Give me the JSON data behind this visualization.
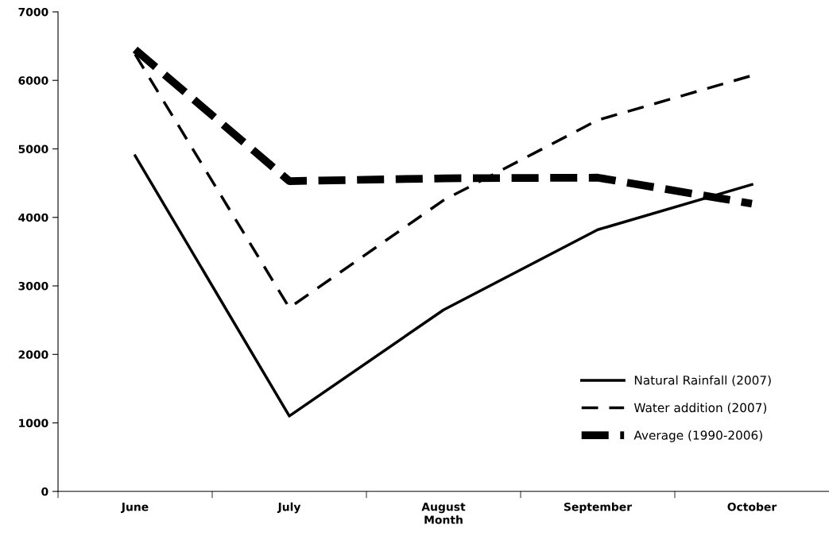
{
  "chart_data": {
    "type": "line",
    "xlabel": "Month",
    "categories": [
      "June",
      "July",
      "August",
      "September",
      "October"
    ],
    "series": [
      {
        "name": "Natural Rainfall (2007)",
        "color": "#000000",
        "line_style": "solid",
        "values": [
          4900,
          1100,
          2650,
          3820,
          4480
        ]
      },
      {
        "name": "Water addition (2007)",
        "color": "#000000",
        "line_style": "dashed",
        "values": [
          6380,
          2680,
          4250,
          5420,
          6070
        ]
      },
      {
        "name": "Average (1990-2006)",
        "color": "#000000",
        "line_style": "dashed",
        "values": [
          6450,
          4530,
          4570,
          4580,
          4200
        ]
      }
    ],
    "ylim": [
      0,
      7000
    ],
    "yticks": [
      0,
      1000,
      2000,
      3000,
      4000,
      5000,
      6000,
      7000
    ],
    "grid": false,
    "legend": "bottom right",
    "marker": "none"
  }
}
